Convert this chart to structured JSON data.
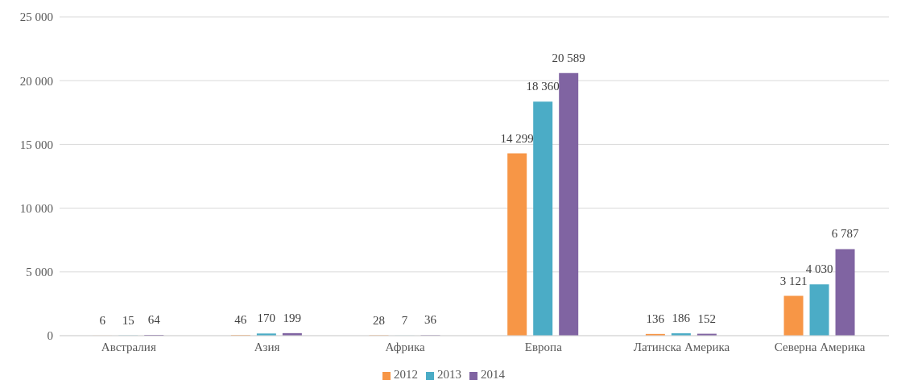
{
  "chart_data": {
    "type": "bar",
    "categories": [
      "Австралия",
      "Азия",
      "Африка",
      "Европа",
      "Латинска Америка",
      "Северна Америка"
    ],
    "series": [
      {
        "name": "2012",
        "color": "#f79646",
        "values": [
          6,
          46,
          28,
          14299,
          136,
          3121
        ],
        "value_labels": [
          "6",
          "46",
          "28",
          "14 299",
          "136",
          "3 121"
        ]
      },
      {
        "name": "2013",
        "color": "#4bacc6",
        "values": [
          15,
          170,
          7,
          18360,
          186,
          4030
        ],
        "value_labels": [
          "15",
          "170",
          "7",
          "18 360",
          "186",
          "4 030"
        ]
      },
      {
        "name": "2014",
        "color": "#8064a2",
        "values": [
          64,
          199,
          36,
          20589,
          152,
          6787
        ],
        "value_labels": [
          "64",
          "199",
          "36",
          "20 589",
          "152",
          "6 787"
        ]
      }
    ],
    "ylim": [
      0,
      25000
    ],
    "yticks": [
      0,
      {
        "value": 5000,
        "label": "5 000"
      },
      {
        "value": 10000,
        "label": "10 000"
      },
      {
        "value": 15000,
        "label": "15 000"
      },
      {
        "value": 20000,
        "label": "20 000"
      },
      {
        "value": 25000,
        "label": "25 000"
      }
    ],
    "grid": "y",
    "legend": "bottom"
  }
}
